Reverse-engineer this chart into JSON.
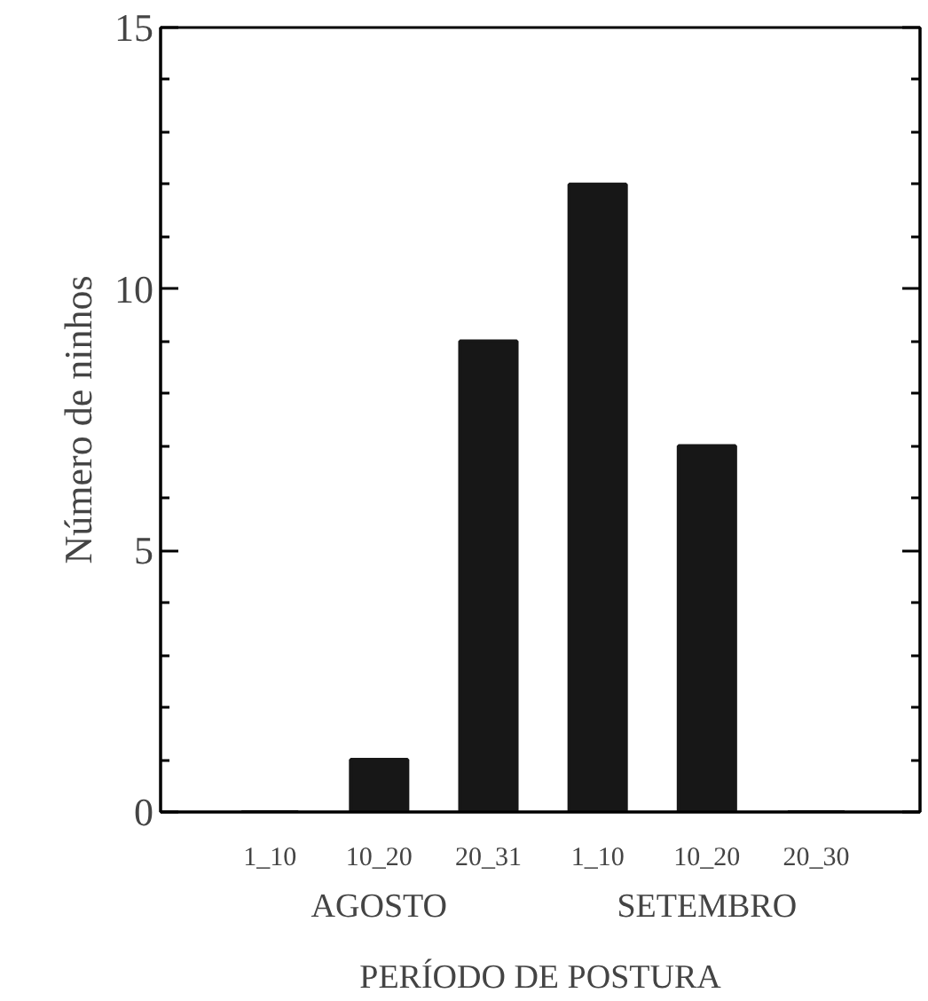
{
  "chart_data": {
    "type": "bar",
    "xlabel": "PERÍODO DE POSTURA",
    "ylabel": "Número de ninhos",
    "categories": [
      "1_10",
      "10_20",
      "20_31",
      "1_10",
      "10_20",
      "20_30"
    ],
    "values": [
      0,
      1,
      9,
      12,
      7,
      0
    ],
    "color": "#171717",
    "annotations": [
      "AGOSTO",
      "SETEMBRO"
    ],
    "ylim": [
      0,
      15
    ],
    "yticks": [
      0,
      {
        "value": 1,
        "label": null
      },
      {
        "value": 2,
        "label": null
      },
      {
        "value": 3,
        "label": null
      },
      {
        "value": 4,
        "label": null
      },
      5,
      {
        "value": 6,
        "label": null
      },
      {
        "value": 7,
        "label": null
      },
      {
        "value": 8,
        "label": null
      },
      {
        "value": 9,
        "label": null
      },
      10,
      {
        "value": 11,
        "label": null
      },
      {
        "value": 12,
        "label": null
      },
      {
        "value": 13,
        "label": null
      },
      {
        "value": 14,
        "label": null
      },
      15
    ],
    "grid": false
  }
}
